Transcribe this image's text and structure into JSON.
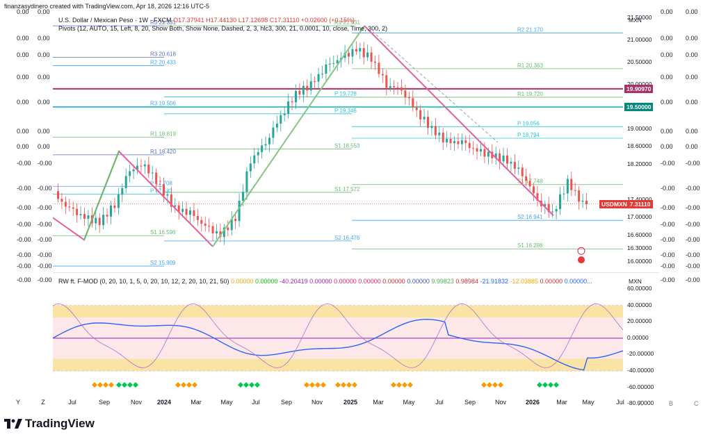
{
  "header": {
    "created_text": "finanzasydinero created with TradingView.com, Apr 18, 2026 12:16 UTC-5"
  },
  "legend": {
    "symbol_line": "U.S. Dollar / Mexican Peso · 1W · FXCM",
    "ohlc": {
      "o": "O17.37941",
      "h": "H17.44130",
      "l": "L17.12698",
      "c": "C17.31110",
      "chg": "+0.02600 (+0.15%)"
    },
    "pivots_line": "Pivots (12, AUTO, 15, Left, 8, 20, Show Both, Show None, Dashed, 2, 3, hlc3, 300, 21, 0.0001, 10, close, Time, 300, 2)",
    "osc_line_label": "RW ft. F-MOD (0, 20, 10, 1, 5, 0, 20, 10, 12, 2, 20, 10, 21, 50)",
    "osc_values": [
      {
        "v": "0.00000",
        "c": "#f2a900"
      },
      {
        "v": "0.00000",
        "c": "#00c800"
      },
      {
        "v": "-40.20419",
        "c": "#9c27b0"
      },
      {
        "v": "0.00000",
        "c": "#9c27b0"
      },
      {
        "v": "0.00000",
        "c": "#e91e63"
      },
      {
        "v": "0.00000",
        "c": "#e91e63"
      },
      {
        "v": "0.00000",
        "c": "#d32f2f"
      },
      {
        "v": "0.00000",
        "c": "#3f51b5"
      },
      {
        "v": "9.99823",
        "c": "#4caf50"
      },
      {
        "v": "0.98984",
        "c": "#d32f2f"
      },
      {
        "v": "-21.91832",
        "c": "#2962ff"
      },
      {
        "v": "-12.03885",
        "c": "#f2a900"
      },
      {
        "v": "0.00000",
        "c": "#d32f2f"
      },
      {
        "v": "0.00000...",
        "c": "#2962ff"
      }
    ]
  },
  "price_axis": {
    "unit": "MXN",
    "ticks": [
      {
        "label": "21.50000",
        "value": 21.5
      },
      {
        "label": "21.00000",
        "value": 21.0
      },
      {
        "label": "20.50000",
        "value": 20.5
      },
      {
        "label": "20.00000",
        "value": 20.0
      },
      {
        "label": "19.00000",
        "value": 19.0
      },
      {
        "label": "18.60000",
        "value": 18.6
      },
      {
        "label": "18.20000",
        "value": 18.2
      },
      {
        "label": "17.40000",
        "value": 17.4
      },
      {
        "label": "17.00000",
        "value": 17.0
      },
      {
        "label": "16.60000",
        "value": 16.6
      },
      {
        "label": "16.30000",
        "value": 16.3
      },
      {
        "label": "16.00000",
        "value": 16.0
      }
    ],
    "tags": [
      {
        "label": "19.90970",
        "value": 19.9097,
        "color": "#a83266"
      },
      {
        "label": "19.50000",
        "value": 19.5,
        "color": "#00897b"
      },
      {
        "label": "17.31110",
        "value": 17.3111,
        "color": "#e53935"
      }
    ],
    "symbol_tag": "USDMXN"
  },
  "osc_axis": {
    "unit": "MXN",
    "ticks": [
      {
        "label": "60.00000",
        "value": 60
      },
      {
        "label": "40.00000",
        "value": 40
      },
      {
        "label": "20.00000",
        "value": 20
      },
      {
        "label": "0.00000",
        "value": 0
      },
      {
        "label": "-20.00000",
        "value": -20
      },
      {
        "label": "-40.00000",
        "value": -40
      },
      {
        "label": "-60.00000",
        "value": -60
      },
      {
        "label": "-80.00000",
        "value": -80
      }
    ]
  },
  "side_columns": {
    "left_a": [
      "0.00",
      "0.00",
      "0.00",
      "0.00",
      "0.00",
      "0.00",
      "0.00",
      "-0.00",
      "-0.00",
      "-0.00",
      "-0.00",
      "-0.00",
      "-0.00",
      "-0.00",
      "-0.00"
    ],
    "left_b": [
      "0.00",
      "0.00",
      "0.00",
      "0.00",
      "0.00",
      "0.00",
      "0.00",
      "-0.00",
      "-0.00",
      "-0.00",
      "-0.00",
      "-0.00",
      "-0.00",
      "-0.00",
      "-0.00"
    ],
    "right_a": [
      "0.00",
      "0.00",
      "0.00",
      "0.00",
      "0.00",
      "0.00",
      "0.00",
      "-0.00",
      "-0.00",
      "-0.00",
      "-0.00",
      "-0.00",
      "-0.00",
      "-0.00",
      "-0.00"
    ],
    "right_b": [
      "0.00",
      "0.00",
      "0.00",
      "0.00",
      "0.00",
      "0.00",
      "0.00",
      "-0.00",
      "-0.00",
      "-0.00",
      "-0.00",
      "-0.00",
      "-0.00",
      "-0.00",
      "-0.00"
    ]
  },
  "pivot_labels": [
    {
      "name": "R3",
      "value": "21.331"
    },
    {
      "name": "R3",
      "value": "20.618"
    },
    {
      "name": "R2",
      "value": "20.433"
    },
    {
      "name": "R3",
      "value": "19.506"
    },
    {
      "name": "R1",
      "value": "18.819"
    },
    {
      "name": "R1",
      "value": "18.420"
    },
    {
      "name": "P",
      "value": "17.708"
    },
    {
      "name": "P",
      "value": "17.532"
    },
    {
      "name": "S1",
      "value": "16.596"
    },
    {
      "name": "S2",
      "value": "15.909"
    },
    {
      "name": "R1",
      "value": "21.331"
    },
    {
      "name": "P",
      "value": "19.728"
    },
    {
      "name": "P",
      "value": "19.346"
    },
    {
      "name": "S1",
      "value": "18.553"
    },
    {
      "name": "S1",
      "value": "17.572"
    },
    {
      "name": "S2",
      "value": "16.476"
    },
    {
      "name": "R2",
      "value": "21.170"
    },
    {
      "name": "R1",
      "value": "20.363"
    },
    {
      "name": "R1",
      "value": "19.720"
    },
    {
      "name": "P",
      "value": "19.056"
    },
    {
      "name": "P",
      "value": "18.794"
    },
    {
      "name": "S1",
      "value": "17.748"
    },
    {
      "name": "S2",
      "value": "16.941"
    },
    {
      "name": "S1",
      "value": "16.298"
    }
  ],
  "time_axis": {
    "labels": [
      {
        "t": "Y",
        "bold": false
      },
      {
        "t": "Z",
        "bold": false
      },
      {
        "t": "Jul",
        "bold": false
      },
      {
        "t": "Sep",
        "bold": false
      },
      {
        "t": "Nov",
        "bold": false
      },
      {
        "t": "2024",
        "bold": true
      },
      {
        "t": "Mar",
        "bold": false
      },
      {
        "t": "May",
        "bold": false
      },
      {
        "t": "Jul",
        "bold": false
      },
      {
        "t": "Sep",
        "bold": false
      },
      {
        "t": "Nov",
        "bold": false
      },
      {
        "t": "2025",
        "bold": true
      },
      {
        "t": "Mar",
        "bold": false
      },
      {
        "t": "May",
        "bold": false
      },
      {
        "t": "Jul",
        "bold": false
      },
      {
        "t": "Sep",
        "bold": false
      },
      {
        "t": "Nov",
        "bold": false
      },
      {
        "t": "2026",
        "bold": true
      },
      {
        "t": "Mar",
        "bold": false
      },
      {
        "t": "May",
        "bold": false
      },
      {
        "t": "Jul",
        "bold": false
      }
    ],
    "corner_letters": [
      "A",
      "B",
      "C"
    ]
  },
  "footer": {
    "brand": "TradingView"
  },
  "chart_data": {
    "type": "line",
    "x": [
      "2023-05",
      "2023-06",
      "2023-07",
      "2023-08",
      "2023-09",
      "2023-10",
      "2023-11",
      "2023-12",
      "2024-01",
      "2024-02",
      "2024-03",
      "2024-04",
      "2024-05",
      "2024-06",
      "2024-07",
      "2024-08",
      "2024-09",
      "2024-10",
      "2024-11",
      "2024-12",
      "2025-01",
      "2025-02",
      "2025-03",
      "2025-04",
      "2025-05",
      "2025-06",
      "2025-07",
      "2025-08",
      "2025-09",
      "2025-10",
      "2025-11",
      "2025-12",
      "2026-01",
      "2026-02",
      "2026-03",
      "2026-04"
    ],
    "series": [
      {
        "values": [
          17.5,
          17.2,
          17.0,
          16.9,
          17.3,
          18.1,
          18.2,
          17.7,
          17.2,
          17.1,
          16.8,
          16.6,
          17.0,
          18.3,
          18.7,
          19.3,
          19.8,
          20.0,
          20.4,
          20.6,
          20.8,
          20.6,
          20.0,
          19.9,
          19.4,
          19.0,
          18.7,
          18.7,
          18.5,
          18.4,
          18.3,
          18.0,
          17.4,
          17.1,
          17.8,
          17.31
        ]
      }
    ],
    "ylim": [
      15.8,
      21.6
    ]
  }
}
